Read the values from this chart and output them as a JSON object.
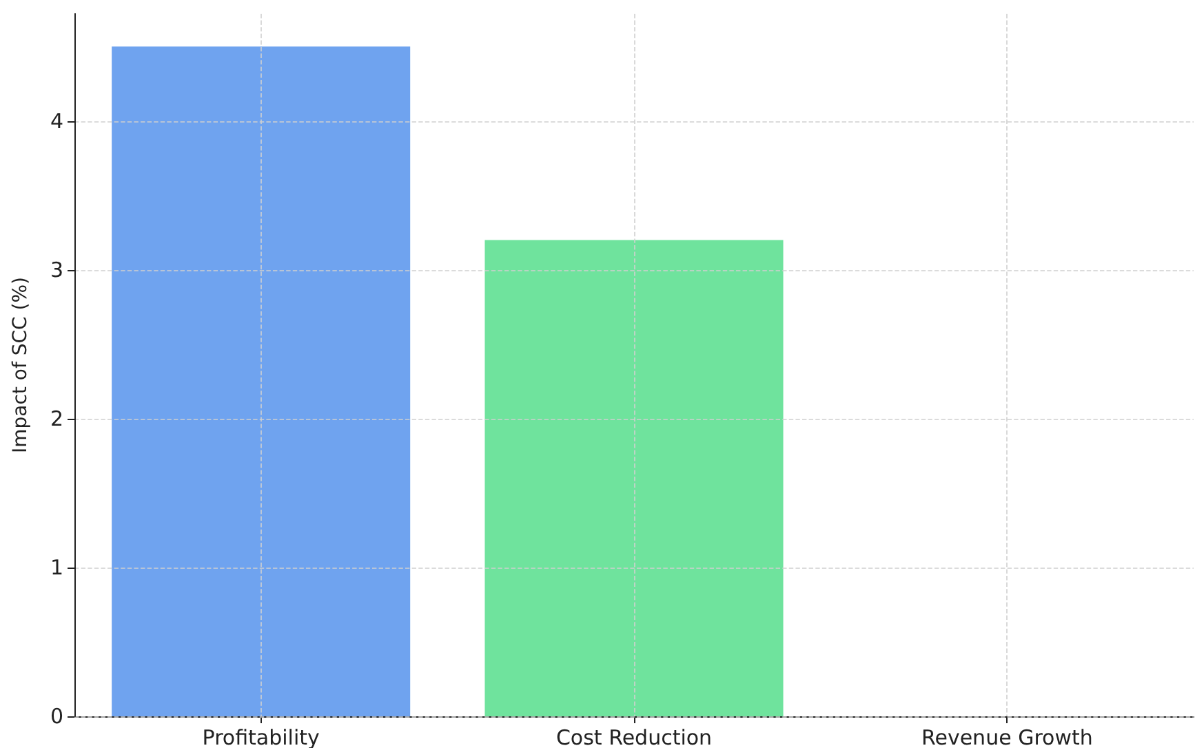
{
  "chart_data": {
    "type": "bar",
    "ylabel": "Impact of SCC (%)",
    "categories": [
      "Profitability",
      "Cost Reduction",
      "Revenue Growth"
    ],
    "values": [
      4.5,
      3.2,
      0
    ],
    "colors": [
      "#6fa3ef",
      "#6fe39d",
      "#f4a261"
    ],
    "ylim": [
      0,
      4.72
    ],
    "yticks": [
      0,
      1,
      2,
      3,
      4
    ],
    "grid": true
  }
}
